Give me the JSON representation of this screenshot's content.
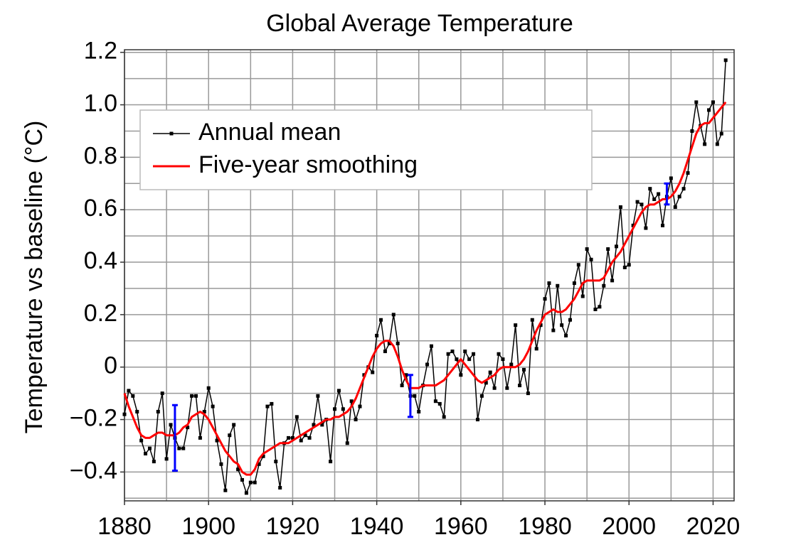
{
  "chart_data": {
    "type": "line",
    "title": "Global Average Temperature",
    "ylabel": "Temperature vs baseline (°C)",
    "xlim": [
      1880,
      2025
    ],
    "ylim": [
      -0.51,
      1.21
    ],
    "xticks": [
      1880,
      1900,
      1920,
      1940,
      1960,
      1980,
      2000,
      2020
    ],
    "yticks": [
      1.2,
      {
        "value": 1,
        "label": "1.0"
      },
      0.8,
      0.6,
      0.4,
      0.2,
      0,
      {
        "value": -0.2,
        "label": "−0.2"
      },
      {
        "value": -0.4,
        "label": "−0.4"
      }
    ],
    "grid": true,
    "xgrid": [
      1880,
      1890,
      1900,
      1910,
      1920,
      1930,
      1940,
      1950,
      1960,
      1970,
      1980,
      1990,
      2000,
      2010,
      2020
    ],
    "ygrid": [
      -0.5,
      -0.4,
      -0.3,
      -0.2,
      -0.1,
      0,
      0.1,
      0.2,
      0.3,
      0.4,
      0.5,
      0.6,
      0.7,
      0.8,
      0.9,
      1,
      1.1,
      1.2
    ],
    "legend": "upper left",
    "x": [
      1880,
      1881,
      1882,
      1883,
      1884,
      1885,
      1886,
      1887,
      1888,
      1889,
      1890,
      1891,
      1892,
      1893,
      1894,
      1895,
      1896,
      1897,
      1898,
      1899,
      1900,
      1901,
      1902,
      1903,
      1904,
      1905,
      1906,
      1907,
      1908,
      1909,
      1910,
      1911,
      1912,
      1913,
      1914,
      1915,
      1916,
      1917,
      1918,
      1919,
      1920,
      1921,
      1922,
      1923,
      1924,
      1925,
      1926,
      1927,
      1928,
      1929,
      1930,
      1931,
      1932,
      1933,
      1934,
      1935,
      1936,
      1937,
      1938,
      1939,
      1940,
      1941,
      1942,
      1943,
      1944,
      1945,
      1946,
      1947,
      1948,
      1949,
      1950,
      1951,
      1952,
      1953,
      1954,
      1955,
      1956,
      1957,
      1958,
      1959,
      1960,
      1961,
      1962,
      1963,
      1964,
      1965,
      1966,
      1967,
      1968,
      1969,
      1970,
      1971,
      1972,
      1973,
      1974,
      1975,
      1976,
      1977,
      1978,
      1979,
      1980,
      1981,
      1982,
      1983,
      1984,
      1985,
      1986,
      1987,
      1988,
      1989,
      1990,
      1991,
      1992,
      1993,
      1994,
      1995,
      1996,
      1997,
      1998,
      1999,
      2000,
      2001,
      2002,
      2003,
      2004,
      2005,
      2006,
      2007,
      2008,
      2009,
      2010,
      2011,
      2012,
      2013,
      2014,
      2015,
      2016,
      2017,
      2018,
      2019,
      2020,
      2021,
      2022,
      2023
    ],
    "series": [
      {
        "name": "Annual mean",
        "color": "#000000",
        "markers": true,
        "values": [
          -0.18,
          -0.09,
          -0.11,
          -0.17,
          -0.28,
          -0.33,
          -0.31,
          -0.36,
          -0.17,
          -0.1,
          -0.35,
          -0.22,
          -0.27,
          -0.31,
          -0.31,
          -0.23,
          -0.11,
          -0.11,
          -0.27,
          -0.17,
          -0.08,
          -0.15,
          -0.28,
          -0.37,
          -0.47,
          -0.26,
          -0.22,
          -0.39,
          -0.43,
          -0.48,
          -0.44,
          -0.44,
          -0.37,
          -0.34,
          -0.15,
          -0.14,
          -0.36,
          -0.46,
          -0.29,
          -0.27,
          -0.27,
          -0.19,
          -0.28,
          -0.26,
          -0.27,
          -0.22,
          -0.11,
          -0.22,
          -0.2,
          -0.36,
          -0.16,
          -0.09,
          -0.16,
          -0.29,
          -0.13,
          -0.2,
          -0.15,
          -0.03,
          0.0,
          -0.02,
          0.12,
          0.18,
          0.06,
          0.09,
          0.2,
          0.09,
          -0.07,
          -0.03,
          -0.11,
          -0.11,
          -0.17,
          -0.07,
          0.01,
          0.08,
          -0.13,
          -0.14,
          -0.19,
          0.05,
          0.06,
          0.03,
          -0.03,
          0.06,
          0.03,
          0.05,
          -0.2,
          -0.11,
          -0.06,
          -0.02,
          -0.08,
          0.05,
          0.03,
          -0.08,
          0.01,
          0.16,
          -0.07,
          -0.01,
          -0.1,
          0.18,
          0.07,
          0.16,
          0.26,
          0.32,
          0.14,
          0.31,
          0.16,
          0.12,
          0.18,
          0.32,
          0.39,
          0.27,
          0.45,
          0.41,
          0.22,
          0.23,
          0.31,
          0.45,
          0.33,
          0.46,
          0.61,
          0.38,
          0.39,
          0.54,
          0.63,
          0.62,
          0.53,
          0.68,
          0.64,
          0.66,
          0.54,
          0.65,
          0.72,
          0.61,
          0.65,
          0.68,
          0.74,
          0.9,
          1.01,
          0.92,
          0.85,
          0.98,
          1.01,
          0.85,
          0.89,
          1.17
        ]
      },
      {
        "name": "Five-year smoothing",
        "color": "#ff0000",
        "markers": false,
        "values": [
          -0.1,
          -0.15,
          -0.19,
          -0.23,
          -0.26,
          -0.27,
          -0.27,
          -0.26,
          -0.25,
          -0.25,
          -0.26,
          -0.26,
          -0.26,
          -0.25,
          -0.23,
          -0.22,
          -0.19,
          -0.18,
          -0.17,
          -0.18,
          -0.2,
          -0.23,
          -0.26,
          -0.29,
          -0.32,
          -0.34,
          -0.36,
          -0.37,
          -0.4,
          -0.41,
          -0.41,
          -0.39,
          -0.35,
          -0.33,
          -0.32,
          -0.31,
          -0.3,
          -0.29,
          -0.29,
          -0.29,
          -0.28,
          -0.27,
          -0.26,
          -0.25,
          -0.24,
          -0.23,
          -0.22,
          -0.21,
          -0.2,
          -0.2,
          -0.19,
          -0.19,
          -0.18,
          -0.17,
          -0.15,
          -0.12,
          -0.08,
          -0.04,
          0.0,
          0.04,
          0.07,
          0.09,
          0.1,
          0.1,
          0.08,
          0.04,
          -0.01,
          -0.05,
          -0.08,
          -0.08,
          -0.08,
          -0.07,
          -0.07,
          -0.07,
          -0.07,
          -0.06,
          -0.05,
          -0.03,
          -0.01,
          0.01,
          0.03,
          0.01,
          -0.01,
          -0.03,
          -0.05,
          -0.06,
          -0.05,
          -0.04,
          -0.03,
          -0.01,
          0.0,
          0.0,
          0.0,
          0.0,
          0.01,
          0.03,
          0.06,
          0.1,
          0.14,
          0.17,
          0.2,
          0.21,
          0.22,
          0.21,
          0.21,
          0.22,
          0.24,
          0.26,
          0.29,
          0.32,
          0.33,
          0.33,
          0.33,
          0.33,
          0.34,
          0.37,
          0.4,
          0.42,
          0.44,
          0.47,
          0.5,
          0.53,
          0.56,
          0.59,
          0.61,
          0.62,
          0.62,
          0.63,
          0.64,
          0.64,
          0.65,
          0.67,
          0.7,
          0.74,
          0.79,
          0.84,
          0.89,
          0.92,
          0.93,
          0.93,
          0.95,
          0.97,
          0.99,
          1.01
        ]
      }
    ],
    "error_bars": {
      "color": "#0000ff",
      "x": [
        1892,
        1948,
        2009
      ],
      "values": [
        -0.27,
        -0.11,
        0.66
      ],
      "errors": [
        0.125,
        0.08,
        0.04
      ]
    }
  }
}
